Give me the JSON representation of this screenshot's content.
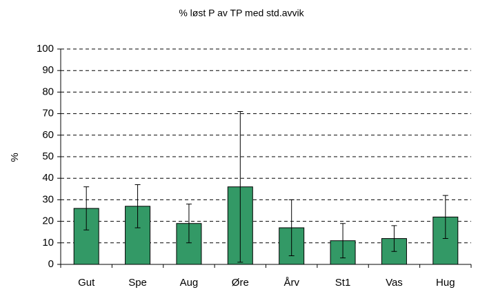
{
  "chart_data": {
    "type": "bar",
    "title": "% løst P av TP med std.avvik",
    "ylabel": "%",
    "categories": [
      "Gut",
      "Spe",
      "Aug",
      "Øre",
      "Årv",
      "St1",
      "Vas",
      "Hug"
    ],
    "values": [
      26,
      27,
      19,
      36,
      17,
      11,
      12,
      22
    ],
    "errors": [
      10,
      10,
      9,
      35,
      13,
      8,
      6,
      10
    ],
    "color": "#339966",
    "ylim": [
      0,
      100
    ],
    "yticks": [
      0,
      10,
      20,
      30,
      40,
      50,
      60,
      70,
      80,
      90,
      100
    ],
    "grid": true
  }
}
